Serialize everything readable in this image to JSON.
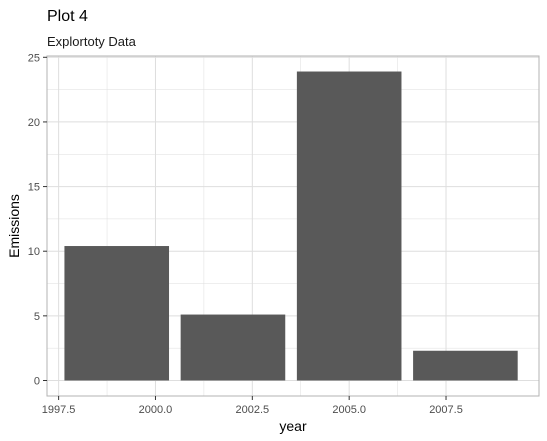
{
  "chart_data": {
    "type": "bar",
    "title": "Plot 4",
    "subtitle": "Explortoty Data",
    "xlabel": "year",
    "ylabel": "Emissions",
    "x": [
      1999,
      2002,
      2005,
      2008
    ],
    "values": [
      10.4,
      5.1,
      23.9,
      2.3
    ],
    "xlim": [
      1997.2,
      2009.9
    ],
    "ylim": [
      -1.2,
      25.1
    ],
    "xticks": [
      1997.5,
      2000.0,
      2002.5,
      2005.0,
      2007.5
    ],
    "xtick_labels": [
      "1997.5",
      "2000.0",
      "2002.5",
      "2005.0",
      "2007.5"
    ],
    "yticks": [
      0,
      5,
      10,
      15,
      20,
      25
    ],
    "ytick_labels": [
      "0",
      "5",
      "10",
      "15",
      "20",
      "25"
    ],
    "bar_width": 2.7,
    "grid": true,
    "bar_color": "#595959",
    "grid_color": "#dedede",
    "panel_border_color": "#b3b3b3"
  }
}
